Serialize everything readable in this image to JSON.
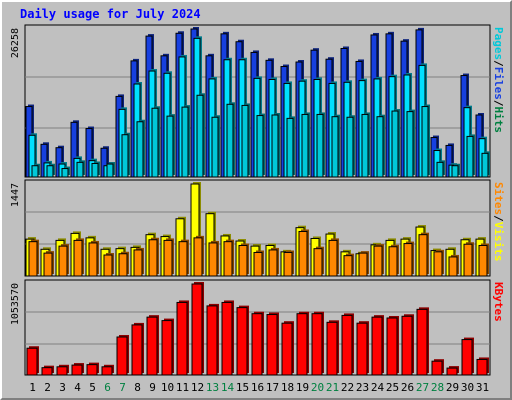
{
  "title": "Daily usage for July 2024",
  "colors": {
    "frame": "#c0c0c0",
    "title": "#0000ff",
    "hits": "#1740e0",
    "files": "#00e0ff",
    "pages": "#00c8d8",
    "visits": "#ffff00",
    "sites": "#ff8800",
    "kbytes": "#ff0000",
    "day_label": "#000000",
    "weekend_label": "#008040"
  },
  "chart_data": [
    {
      "type": "bar",
      "panel": "hits-files-pages",
      "categories": [
        "1",
        "2",
        "3",
        "4",
        "5",
        "6",
        "7",
        "8",
        "9",
        "10",
        "11",
        "12",
        "13",
        "14",
        "15",
        "16",
        "17",
        "18",
        "19",
        "20",
        "21",
        "22",
        "23",
        "24",
        "25",
        "26",
        "27",
        "28",
        "29",
        "30",
        "31"
      ],
      "ylabel_parts": [
        "Pages",
        "/",
        "Files",
        "/",
        "Hits"
      ],
      "ylabel_colors": [
        "#00c8d8",
        "#000000",
        "#1740e0",
        "#000000",
        "#008040"
      ],
      "max_label": "26258",
      "ylim": [
        0,
        26258
      ],
      "series": [
        {
          "name": "Hits",
          "color": "#1740e0",
          "values": [
            12500,
            5800,
            5200,
            9700,
            8600,
            5100,
            14300,
            20600,
            25000,
            21500,
            25500,
            26258,
            21500,
            25400,
            24000,
            22100,
            20700,
            19600,
            20400,
            22500,
            20900,
            22800,
            20500,
            25200,
            25400,
            24100,
            26100,
            7000,
            5600,
            18000,
            11000
          ]
        },
        {
          "name": "Files",
          "color": "#00e0ff",
          "values": [
            7400,
            2500,
            2300,
            3300,
            2900,
            2000,
            12000,
            16500,
            18800,
            18400,
            21300,
            24600,
            17400,
            20800,
            20800,
            17500,
            17300,
            16600,
            17000,
            17300,
            16600,
            16800,
            17100,
            17400,
            17800,
            18100,
            19800,
            4700,
            2100,
            12300,
            6800
          ]
        },
        {
          "name": "Pages",
          "color": "#00c8d8",
          "values": [
            2000,
            2000,
            1500,
            2600,
            2400,
            2300,
            7500,
            9800,
            12200,
            10800,
            12400,
            14500,
            10600,
            12900,
            12700,
            10900,
            11000,
            10400,
            11100,
            11100,
            10700,
            10600,
            11100,
            10700,
            11700,
            11600,
            12500,
            2600,
            2000,
            7200,
            4200
          ]
        }
      ]
    },
    {
      "type": "bar",
      "panel": "visits-sites",
      "categories": [
        "1",
        "2",
        "3",
        "4",
        "5",
        "6",
        "7",
        "8",
        "9",
        "10",
        "11",
        "12",
        "13",
        "14",
        "15",
        "16",
        "17",
        "18",
        "19",
        "20",
        "21",
        "22",
        "23",
        "24",
        "25",
        "26",
        "27",
        "28",
        "29",
        "30",
        "31"
      ],
      "ylabel_parts": [
        "Sites",
        "/",
        "Visits"
      ],
      "ylabel_colors": [
        "#ff8800",
        "#000000",
        "#ffff00"
      ],
      "max_label": "1447",
      "ylim": [
        0,
        1447
      ],
      "series": [
        {
          "name": "Visits",
          "color": "#ffff00",
          "values": [
            580,
            420,
            560,
            670,
            600,
            420,
            430,
            450,
            650,
            620,
            900,
            1447,
            980,
            630,
            550,
            470,
            480,
            380,
            760,
            590,
            660,
            380,
            350,
            490,
            560,
            580,
            770,
            400,
            420,
            570,
            580
          ]
        },
        {
          "name": "Sites",
          "color": "#ff8800",
          "values": [
            540,
            360,
            470,
            560,
            520,
            330,
            350,
            410,
            570,
            560,
            540,
            600,
            520,
            540,
            480,
            370,
            410,
            370,
            700,
            430,
            560,
            320,
            360,
            470,
            460,
            510,
            650,
            380,
            300,
            500,
            480
          ]
        }
      ]
    },
    {
      "type": "bar",
      "panel": "kbytes",
      "categories": [
        "1",
        "2",
        "3",
        "4",
        "5",
        "6",
        "7",
        "8",
        "9",
        "10",
        "11",
        "12",
        "13",
        "14",
        "15",
        "16",
        "17",
        "18",
        "19",
        "20",
        "21",
        "22",
        "23",
        "24",
        "25",
        "26",
        "27",
        "28",
        "29",
        "30",
        "31"
      ],
      "ylabel_parts": [
        "KBytes"
      ],
      "ylabel_colors": [
        "#ff0000"
      ],
      "max_label": "1053570",
      "ylim": [
        0,
        1053570
      ],
      "series": [
        {
          "name": "KBytes",
          "color": "#ff0000",
          "values": [
            310000,
            85000,
            95000,
            115000,
            120000,
            95000,
            440000,
            580000,
            670000,
            630000,
            840000,
            1053570,
            800000,
            840000,
            780000,
            710000,
            700000,
            600000,
            710000,
            710000,
            610000,
            690000,
            600000,
            670000,
            660000,
            680000,
            760000,
            160000,
            80000,
            410000,
            180000
          ]
        }
      ]
    }
  ],
  "x_labels": [
    {
      "text": "1",
      "weekend": false
    },
    {
      "text": "2",
      "weekend": false
    },
    {
      "text": "3",
      "weekend": false
    },
    {
      "text": "4",
      "weekend": false
    },
    {
      "text": "5",
      "weekend": false
    },
    {
      "text": "6",
      "weekend": true
    },
    {
      "text": "7",
      "weekend": true
    },
    {
      "text": "8",
      "weekend": false
    },
    {
      "text": "9",
      "weekend": false
    },
    {
      "text": "10",
      "weekend": false
    },
    {
      "text": "11",
      "weekend": false
    },
    {
      "text": "12",
      "weekend": false
    },
    {
      "text": "13",
      "weekend": true
    },
    {
      "text": "14",
      "weekend": true
    },
    {
      "text": "15",
      "weekend": false
    },
    {
      "text": "16",
      "weekend": false
    },
    {
      "text": "17",
      "weekend": false
    },
    {
      "text": "18",
      "weekend": false
    },
    {
      "text": "19",
      "weekend": false
    },
    {
      "text": "20",
      "weekend": true
    },
    {
      "text": "21",
      "weekend": true
    },
    {
      "text": "22",
      "weekend": false
    },
    {
      "text": "23",
      "weekend": false
    },
    {
      "text": "24",
      "weekend": false
    },
    {
      "text": "25",
      "weekend": false
    },
    {
      "text": "26",
      "weekend": false
    },
    {
      "text": "27",
      "weekend": true
    },
    {
      "text": "28",
      "weekend": true
    },
    {
      "text": "29",
      "weekend": false
    },
    {
      "text": "30",
      "weekend": false
    },
    {
      "text": "31",
      "weekend": false
    }
  ]
}
